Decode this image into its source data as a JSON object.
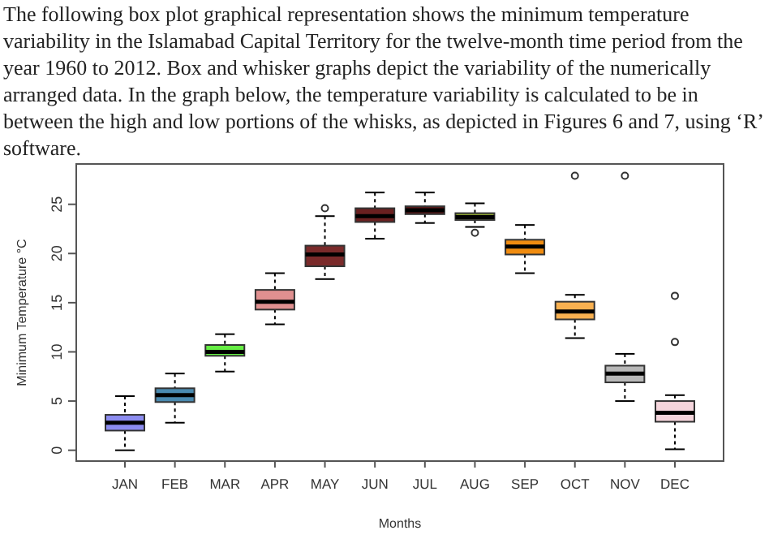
{
  "chart_data": {
    "type": "box",
    "xlabel": "Months",
    "ylabel": "Minimum Temperature °C",
    "annotations": [
      "The following box plot graphical representation shows the minimum temperature variability in the Islamabad Capital Territory for the twelve-month time period from the year 1960 to 2012. Box and whisker graphs depict the variability of the numerically arranged data. In the graph below, the temperature variability is calculated to be in between the high and low portions of the whisks, as depicted in Figures 6 and 7, using ‘R’ software."
    ],
    "categories": [
      "JAN",
      "FEB",
      "MAR",
      "APR",
      "MAY",
      "JUN",
      "JUL",
      "AUG",
      "SEP",
      "OCT",
      "NOV",
      "DEC"
    ],
    "colors": [
      "#8c8cf0",
      "#4a8ab0",
      "#66ee44",
      "#e09090",
      "#7a2a2a",
      "#6a2020",
      "#5a1818",
      "#8aa030",
      "#f08c10",
      "#f8b050",
      "#b8b8b8",
      "#f5d5dc"
    ],
    "boxes": [
      {
        "low": 0,
        "q1": 2,
        "median": 2.8,
        "q3": 3.6,
        "high": 5.5
      },
      {
        "low": 2.8,
        "q1": 4.9,
        "median": 5.6,
        "q3": 6.3,
        "high": 7.8
      },
      {
        "low": 8,
        "q1": 9.6,
        "median": 10,
        "q3": 10.7,
        "high": 11.8
      },
      {
        "low": 12.8,
        "q1": 14.3,
        "median": 15.1,
        "q3": 16.3,
        "high": 18
      },
      {
        "low": 17.4,
        "q1": 18.7,
        "median": 19.9,
        "q3": 20.8,
        "high": 23.8,
        "outliers": [
          24.6
        ]
      },
      {
        "low": 21.5,
        "q1": 23.2,
        "median": 23.8,
        "q3": 24.6,
        "high": 26.2
      },
      {
        "low": 23.1,
        "q1": 24,
        "median": 24.4,
        "q3": 24.8,
        "high": 26.2
      },
      {
        "low": 22.7,
        "q1": 23.4,
        "median": 23.7,
        "q3": 24.1,
        "high": 25.1,
        "outliers": [
          22.1
        ]
      },
      {
        "low": 18,
        "q1": 19.9,
        "median": 20.7,
        "q3": 21.4,
        "high": 22.9
      },
      {
        "low": 11.4,
        "q1": 13.3,
        "median": 14.1,
        "q3": 15.1,
        "high": 15.8,
        "outliers": [
          27.9
        ]
      },
      {
        "low": 5,
        "q1": 6.9,
        "median": 7.8,
        "q3": 8.6,
        "high": 9.8,
        "outliers": [
          27.9
        ]
      },
      {
        "low": 0.1,
        "q1": 2.9,
        "median": 3.8,
        "q3": 5,
        "high": 5.6,
        "outliers": [
          11,
          15.7
        ]
      }
    ],
    "ylim": [
      -1.1,
      29.1
    ],
    "yticks": [
      0,
      5,
      10,
      15,
      20,
      25
    ]
  }
}
